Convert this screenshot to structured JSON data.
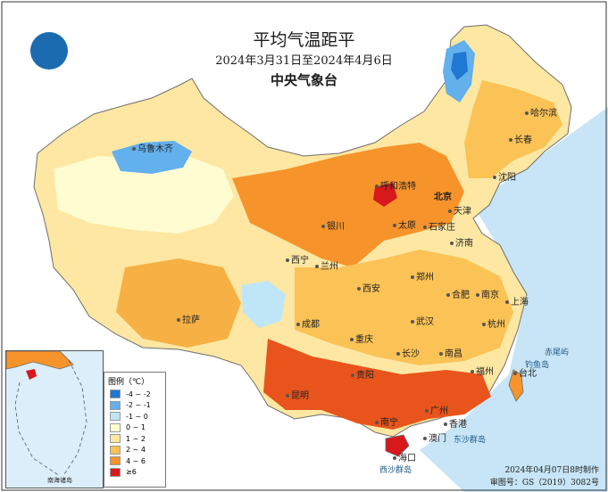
{
  "title": "平均气温距平",
  "date_range": "2024年3月31日至2024年4月6日",
  "organization": "中央气象台",
  "legend": {
    "title": "图例（℃）",
    "classes": [
      {
        "label": "-4 ~ -2",
        "color": "#1f78d1"
      },
      {
        "label": "-2 ~ -1",
        "color": "#62b0ec"
      },
      {
        "label": "-1 ~ 0",
        "color": "#bfe6f7"
      },
      {
        "label": "0 ~ 1",
        "color": "#fffcd2"
      },
      {
        "label": "1 ~ 2",
        "color": "#fde7a2"
      },
      {
        "label": "2 ~ 4",
        "color": "#fbc256"
      },
      {
        "label": "4 ~ 6",
        "color": "#f6932a"
      },
      {
        "label": "≥6",
        "color": "#d7191c"
      }
    ]
  },
  "colors": {
    "ocean": "#c7e5f6",
    "border": "#6e6e6e"
  },
  "cities": [
    {
      "name": "哈尔滨"
    },
    {
      "name": "长春"
    },
    {
      "name": "沈阳"
    },
    {
      "name": "乌鲁木齐"
    },
    {
      "name": "呼和浩特"
    },
    {
      "name": "北京"
    },
    {
      "name": "天津"
    },
    {
      "name": "银川"
    },
    {
      "name": "太原"
    },
    {
      "name": "石家庄"
    },
    {
      "name": "济南"
    },
    {
      "name": "西宁"
    },
    {
      "name": "兰州"
    },
    {
      "name": "郑州"
    },
    {
      "name": "西安"
    },
    {
      "name": "合肥"
    },
    {
      "name": "南京"
    },
    {
      "name": "上海"
    },
    {
      "name": "拉萨"
    },
    {
      "name": "成都"
    },
    {
      "name": "武汉"
    },
    {
      "name": "杭州"
    },
    {
      "name": "重庆"
    },
    {
      "name": "长沙"
    },
    {
      "name": "南昌"
    },
    {
      "name": "福州"
    },
    {
      "name": "台北"
    },
    {
      "name": "贵阳"
    },
    {
      "name": "昆明"
    },
    {
      "name": "南宁"
    },
    {
      "name": "广州"
    },
    {
      "name": "香港"
    },
    {
      "name": "澳门"
    },
    {
      "name": "海口"
    }
  ],
  "sea_labels": [
    {
      "name": "赤尾屿"
    },
    {
      "name": "钓鱼岛"
    },
    {
      "name": "东沙群岛"
    },
    {
      "name": "西沙群岛"
    }
  ],
  "inset_label": "南海诸岛",
  "footer": {
    "made": "2024年04月07日8时制作",
    "review": "审图号：GS（2019）3082号"
  }
}
